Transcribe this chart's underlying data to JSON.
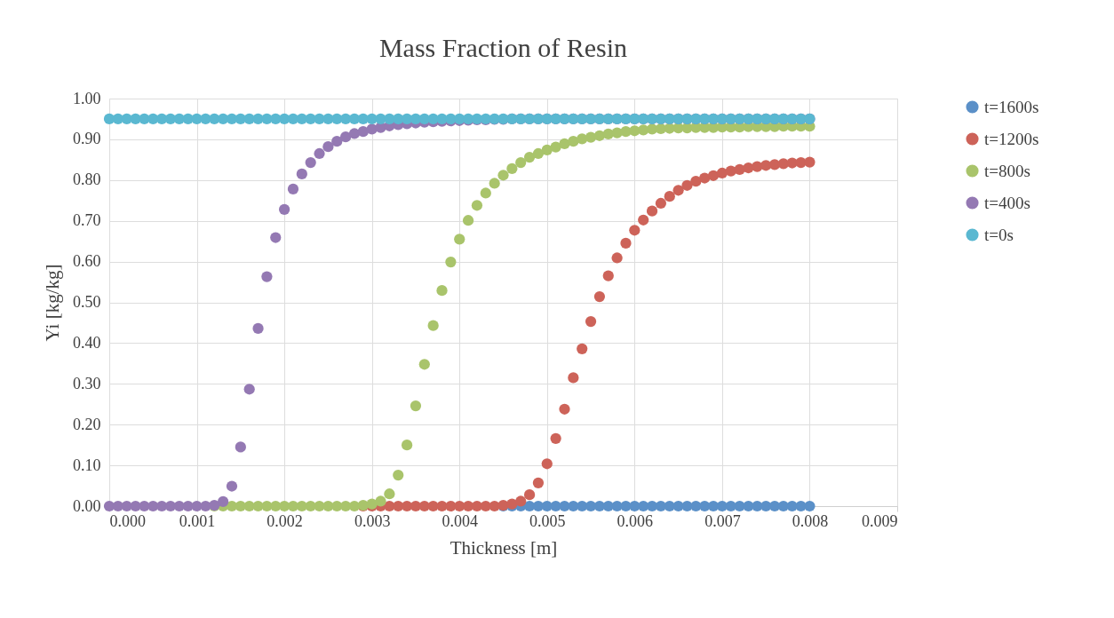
{
  "chart_data": {
    "type": "scatter",
    "title": "Mass Fraction of Resin",
    "xlabel": "Thickness [m]",
    "ylabel": "Yi [kg/kg]",
    "x": [
      0,
      0.0001,
      0.0002,
      0.0003,
      0.0004,
      0.0005,
      0.0006,
      0.0007,
      0.0008,
      0.0009,
      0.001,
      0.0011,
      0.0012,
      0.0013,
      0.0014,
      0.0015,
      0.0016,
      0.0017,
      0.0018,
      0.0019,
      0.002,
      0.0021,
      0.0022,
      0.0023,
      0.0024,
      0.0025,
      0.0026,
      0.0027,
      0.0028,
      0.0029,
      0.003,
      0.0031,
      0.0032,
      0.0033,
      0.0034,
      0.0035,
      0.0036,
      0.0037,
      0.0038,
      0.0039,
      0.004,
      0.0041,
      0.0042,
      0.0043,
      0.0044,
      0.0045,
      0.0046,
      0.0047,
      0.0048,
      0.0049,
      0.005,
      0.0051,
      0.0052,
      0.0053,
      0.0054,
      0.0055,
      0.0056,
      0.0057,
      0.0058,
      0.0059,
      0.006,
      0.0061,
      0.0062,
      0.0063,
      0.0064,
      0.0065,
      0.0066,
      0.0067,
      0.0068,
      0.0069,
      0.007,
      0.0071,
      0.0072,
      0.0073,
      0.0074,
      0.0075,
      0.0076,
      0.0077,
      0.0078,
      0.0079,
      0.008
    ],
    "series": [
      {
        "name": "t=1600s",
        "color": "#5b90c8",
        "values": [
          null,
          null,
          null,
          null,
          null,
          null,
          null,
          null,
          null,
          null,
          null,
          null,
          null,
          null,
          null,
          null,
          null,
          null,
          null,
          null,
          null,
          null,
          null,
          null,
          null,
          null,
          null,
          null,
          null,
          null,
          null,
          null,
          null,
          null,
          null,
          null,
          null,
          null,
          null,
          null,
          null,
          null,
          null,
          null,
          null,
          0,
          0,
          0,
          0,
          0,
          0,
          0,
          0,
          0,
          0,
          0,
          0,
          0,
          0,
          0,
          0,
          0,
          0,
          0,
          0,
          0,
          0,
          0,
          0,
          0,
          0,
          0,
          0,
          0,
          0,
          0,
          0,
          0,
          0,
          0,
          0
        ]
      },
      {
        "name": "t=1200s",
        "color": "#cd6359",
        "values": [
          null,
          null,
          null,
          null,
          null,
          null,
          null,
          null,
          null,
          null,
          null,
          null,
          null,
          null,
          null,
          null,
          null,
          null,
          null,
          null,
          null,
          null,
          null,
          null,
          null,
          null,
          null,
          null,
          null,
          0,
          0,
          0,
          0,
          0,
          0,
          0,
          0,
          0,
          0,
          0,
          0,
          0,
          0,
          0,
          0,
          0.002,
          0.005,
          0.012,
          0.028,
          0.057,
          0.104,
          0.166,
          0.238,
          0.315,
          0.386,
          0.453,
          0.514,
          0.565,
          0.609,
          0.645,
          0.677,
          0.702,
          0.724,
          0.743,
          0.76,
          0.775,
          0.787,
          0.797,
          0.805,
          0.811,
          0.817,
          0.822,
          0.826,
          0.83,
          0.833,
          0.836,
          0.838,
          0.84,
          0.842,
          0.843,
          0.844
        ]
      },
      {
        "name": "t=800s",
        "color": "#a9c46b",
        "values": [
          null,
          null,
          null,
          null,
          null,
          null,
          null,
          null,
          null,
          null,
          null,
          null,
          0,
          0,
          0,
          0,
          0,
          0,
          0,
          0,
          0,
          0,
          0,
          0,
          0,
          0,
          0,
          0,
          0,
          0.002,
          0.005,
          0.012,
          0.03,
          0.076,
          0.15,
          0.246,
          0.348,
          0.443,
          0.529,
          0.599,
          0.655,
          0.701,
          0.738,
          0.768,
          0.792,
          0.812,
          0.828,
          0.843,
          0.856,
          0.865,
          0.874,
          0.881,
          0.889,
          0.895,
          0.901,
          0.905,
          0.909,
          0.913,
          0.916,
          0.919,
          0.921,
          0.923,
          0.925,
          0.926,
          0.927,
          0.928,
          0.928,
          0.929,
          0.929,
          0.929,
          0.93,
          0.93,
          0.93,
          0.931,
          0.931,
          0.931,
          0.931,
          0.932,
          0.932,
          0.932,
          0.932
        ]
      },
      {
        "name": "t=400s",
        "color": "#9479b3",
        "values": [
          0,
          0,
          0,
          0,
          0,
          0,
          0,
          0,
          0,
          0,
          0,
          0,
          0.002,
          0.011,
          0.049,
          0.145,
          0.287,
          0.436,
          0.563,
          0.659,
          0.728,
          0.778,
          0.815,
          0.843,
          0.865,
          0.882,
          0.895,
          0.906,
          0.914,
          0.919,
          0.925,
          0.929,
          0.933,
          0.936,
          0.938,
          0.94,
          0.942,
          0.943,
          0.944,
          0.945,
          0.946,
          0.947,
          0.948,
          0.948,
          0.949,
          0.949,
          0.95,
          0.95,
          0.95,
          0.95,
          0.95,
          0.95,
          0.95,
          0.95,
          0.95,
          0.95,
          0.95,
          0.95,
          0.95,
          0.95,
          0.95,
          0.95,
          0.95,
          0.95,
          0.95,
          0.95,
          0.95,
          0.95,
          0.95,
          0.95,
          0.95,
          0.95,
          0.95,
          0.95,
          0.95,
          0.95,
          0.95,
          0.95,
          0.95,
          0.95,
          0.95
        ]
      },
      {
        "name": "t=0s",
        "color": "#5ab8d1",
        "values": [
          0.95,
          0.95,
          0.95,
          0.95,
          0.95,
          0.95,
          0.95,
          0.95,
          0.95,
          0.95,
          0.95,
          0.95,
          0.95,
          0.95,
          0.95,
          0.95,
          0.95,
          0.95,
          0.95,
          0.95,
          0.95,
          0.95,
          0.95,
          0.95,
          0.95,
          0.95,
          0.95,
          0.95,
          0.95,
          0.95,
          0.95,
          0.95,
          0.95,
          0.95,
          0.95,
          0.95,
          0.95,
          0.95,
          0.95,
          0.95,
          0.95,
          0.95,
          0.95,
          0.95,
          0.95,
          0.95,
          0.95,
          0.95,
          0.95,
          0.95,
          0.95,
          0.95,
          0.95,
          0.95,
          0.95,
          0.95,
          0.95,
          0.95,
          0.95,
          0.95,
          0.95,
          0.95,
          0.95,
          0.95,
          0.95,
          0.95,
          0.95,
          0.95,
          0.95,
          0.95,
          0.95,
          0.95,
          0.95,
          0.95,
          0.95,
          0.95,
          0.95,
          0.95,
          0.95,
          0.95,
          0.95
        ]
      }
    ],
    "xlim": [
      0,
      0.009
    ],
    "xticks": [
      {
        "value": 0,
        "label": "0.000"
      },
      {
        "value": 0.001,
        "label": "0.001"
      },
      {
        "value": 0.002,
        "label": "0.002"
      },
      {
        "value": 0.003,
        "label": "0.003"
      },
      {
        "value": 0.004,
        "label": "0.004"
      },
      {
        "value": 0.005,
        "label": "0.005"
      },
      {
        "value": 0.006,
        "label": "0.006"
      },
      {
        "value": 0.007,
        "label": "0.007"
      },
      {
        "value": 0.008,
        "label": "0.008"
      },
      {
        "value": 0.009,
        "label": "0.009"
      }
    ],
    "ylim": [
      0,
      1
    ],
    "yticks": [
      {
        "value": 0,
        "label": "0.00"
      },
      {
        "value": 0.1,
        "label": "0.10"
      },
      {
        "value": 0.2,
        "label": "0.20"
      },
      {
        "value": 0.3,
        "label": "0.30"
      },
      {
        "value": 0.4,
        "label": "0.40"
      },
      {
        "value": 0.5,
        "label": "0.50"
      },
      {
        "value": 0.6,
        "label": "0.60"
      },
      {
        "value": 0.7,
        "label": "0.70"
      },
      {
        "value": 0.8,
        "label": "0.80"
      },
      {
        "value": 0.9,
        "label": "0.90"
      },
      {
        "value": 1,
        "label": "1.00"
      }
    ],
    "grid": true,
    "legend": "right",
    "marker": "circle"
  }
}
